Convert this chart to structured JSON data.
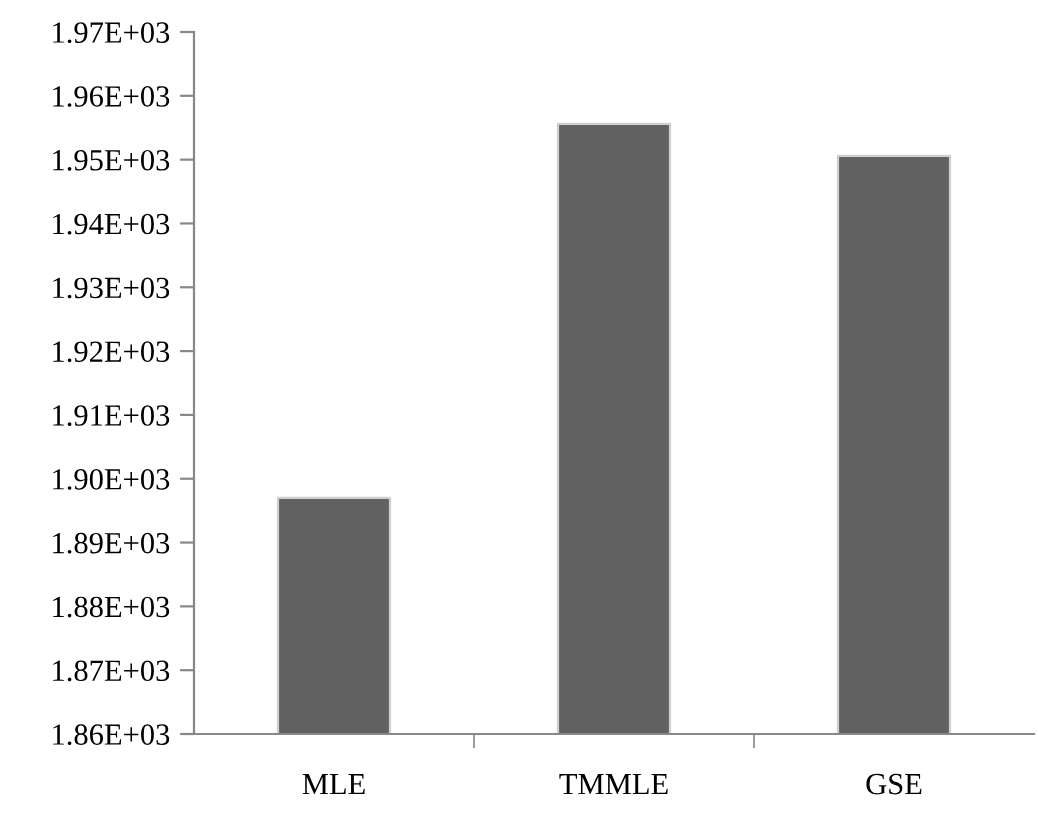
{
  "chart_data": {
    "type": "bar",
    "categories": [
      "MLE",
      "TMMLE",
      "GSE"
    ],
    "values": [
      1897,
      1955.6,
      1950.6
    ],
    "color": "#616161",
    "ylim": [
      1860,
      1970
    ],
    "yticks": [
      {
        "value": 1860,
        "label": "1.86E+03"
      },
      {
        "value": 1870,
        "label": "1.87E+03"
      },
      {
        "value": 1880,
        "label": "1.88E+03"
      },
      {
        "value": 1890,
        "label": "1.89E+03"
      },
      {
        "value": 1900,
        "label": "1.90E+03"
      },
      {
        "value": 1910,
        "label": "1.91E+03"
      },
      {
        "value": 1920,
        "label": "1.92E+03"
      },
      {
        "value": 1930,
        "label": "1.93E+03"
      },
      {
        "value": 1940,
        "label": "1.94E+03"
      },
      {
        "value": 1950,
        "label": "1.95E+03"
      },
      {
        "value": 1960,
        "label": "1.96E+03"
      },
      {
        "value": 1970,
        "label": "1.97E+03"
      }
    ],
    "grid": false
  }
}
